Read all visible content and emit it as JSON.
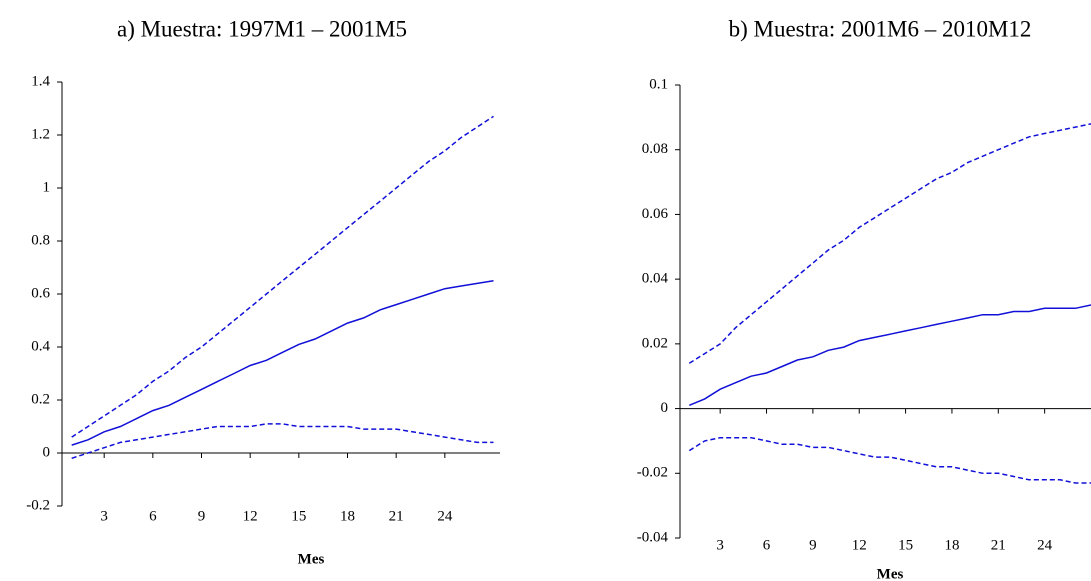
{
  "chart_data": [
    {
      "type": "line",
      "title": "a)    Muestra: 1997M1 – 2001M5",
      "x_label": "Mes",
      "x": [
        1,
        2,
        3,
        4,
        5,
        6,
        7,
        8,
        9,
        10,
        11,
        12,
        13,
        14,
        15,
        16,
        17,
        18,
        19,
        20,
        21,
        22,
        23,
        24,
        25,
        26,
        27
      ],
      "series": [
        {
          "color": "#1010d8",
          "dashed": false,
          "values": [
            0.03,
            0.05,
            0.08,
            0.1,
            0.13,
            0.16,
            0.18,
            0.21,
            0.24,
            0.27,
            0.3,
            0.33,
            0.35,
            0.38,
            0.41,
            0.43,
            0.46,
            0.49,
            0.51,
            0.54,
            0.56,
            0.58,
            0.6,
            0.62,
            0.63,
            0.64,
            0.65
          ]
        },
        {
          "color": "#1010d8",
          "dashed": true,
          "values": [
            0.06,
            0.1,
            0.14,
            0.18,
            0.22,
            0.27,
            0.31,
            0.36,
            0.4,
            0.45,
            0.5,
            0.55,
            0.6,
            0.65,
            0.7,
            0.75,
            0.8,
            0.85,
            0.9,
            0.95,
            1.0,
            1.05,
            1.1,
            1.14,
            1.19,
            1.23,
            1.27
          ]
        },
        {
          "color": "#1010d8",
          "dashed": true,
          "values": [
            -0.02,
            0.0,
            0.02,
            0.04,
            0.05,
            0.06,
            0.07,
            0.08,
            0.09,
            0.1,
            0.1,
            0.1,
            0.11,
            0.11,
            0.1,
            0.1,
            0.1,
            0.1,
            0.09,
            0.09,
            0.09,
            0.08,
            0.07,
            0.06,
            0.05,
            0.04,
            0.04
          ]
        }
      ],
      "xlim": [
        0.4,
        27.4
      ],
      "xticks": [
        3,
        6,
        9,
        12,
        15,
        18,
        21,
        24
      ],
      "ylim": [
        -0.2,
        1.4
      ],
      "yticks": [
        -0.2,
        0,
        0.2,
        0.4,
        0.6,
        0.8,
        1,
        1.2,
        1.4
      ]
    },
    {
      "type": "line",
      "title": "b)    Muestra: 2001M6 – 2010M12",
      "x_label": "Mes",
      "x": [
        1,
        2,
        3,
        4,
        5,
        6,
        7,
        8,
        9,
        10,
        11,
        12,
        13,
        14,
        15,
        16,
        17,
        18,
        19,
        20,
        21,
        22,
        23,
        24,
        25,
        26,
        27
      ],
      "series": [
        {
          "color": "#1010d8",
          "dashed": false,
          "values": [
            0.001,
            0.003,
            0.006,
            0.008,
            0.01,
            0.011,
            0.013,
            0.015,
            0.016,
            0.018,
            0.019,
            0.021,
            0.022,
            0.023,
            0.024,
            0.025,
            0.026,
            0.027,
            0.028,
            0.029,
            0.029,
            0.03,
            0.03,
            0.031,
            0.031,
            0.031,
            0.032
          ]
        },
        {
          "color": "#1010d8",
          "dashed": true,
          "values": [
            0.014,
            0.017,
            0.02,
            0.025,
            0.029,
            0.033,
            0.037,
            0.041,
            0.045,
            0.049,
            0.052,
            0.056,
            0.059,
            0.062,
            0.065,
            0.068,
            0.071,
            0.073,
            0.076,
            0.078,
            0.08,
            0.082,
            0.084,
            0.085,
            0.086,
            0.087,
            0.088
          ]
        },
        {
          "color": "#1010d8",
          "dashed": true,
          "values": [
            -0.013,
            -0.01,
            -0.009,
            -0.009,
            -0.009,
            -0.01,
            -0.011,
            -0.011,
            -0.012,
            -0.012,
            -0.013,
            -0.014,
            -0.015,
            -0.015,
            -0.016,
            -0.017,
            -0.018,
            -0.018,
            -0.019,
            -0.02,
            -0.02,
            -0.021,
            -0.022,
            -0.022,
            -0.022,
            -0.023,
            -0.023
          ]
        }
      ],
      "xlim": [
        0.4,
        27.0
      ],
      "xticks": [
        3,
        6,
        9,
        12,
        15,
        18,
        21,
        24
      ],
      "ylim": [
        -0.04,
        0.1
      ],
      "yticks": [
        -0.04,
        -0.02,
        0,
        0.02,
        0.04,
        0.06,
        0.08,
        0.1
      ]
    }
  ]
}
